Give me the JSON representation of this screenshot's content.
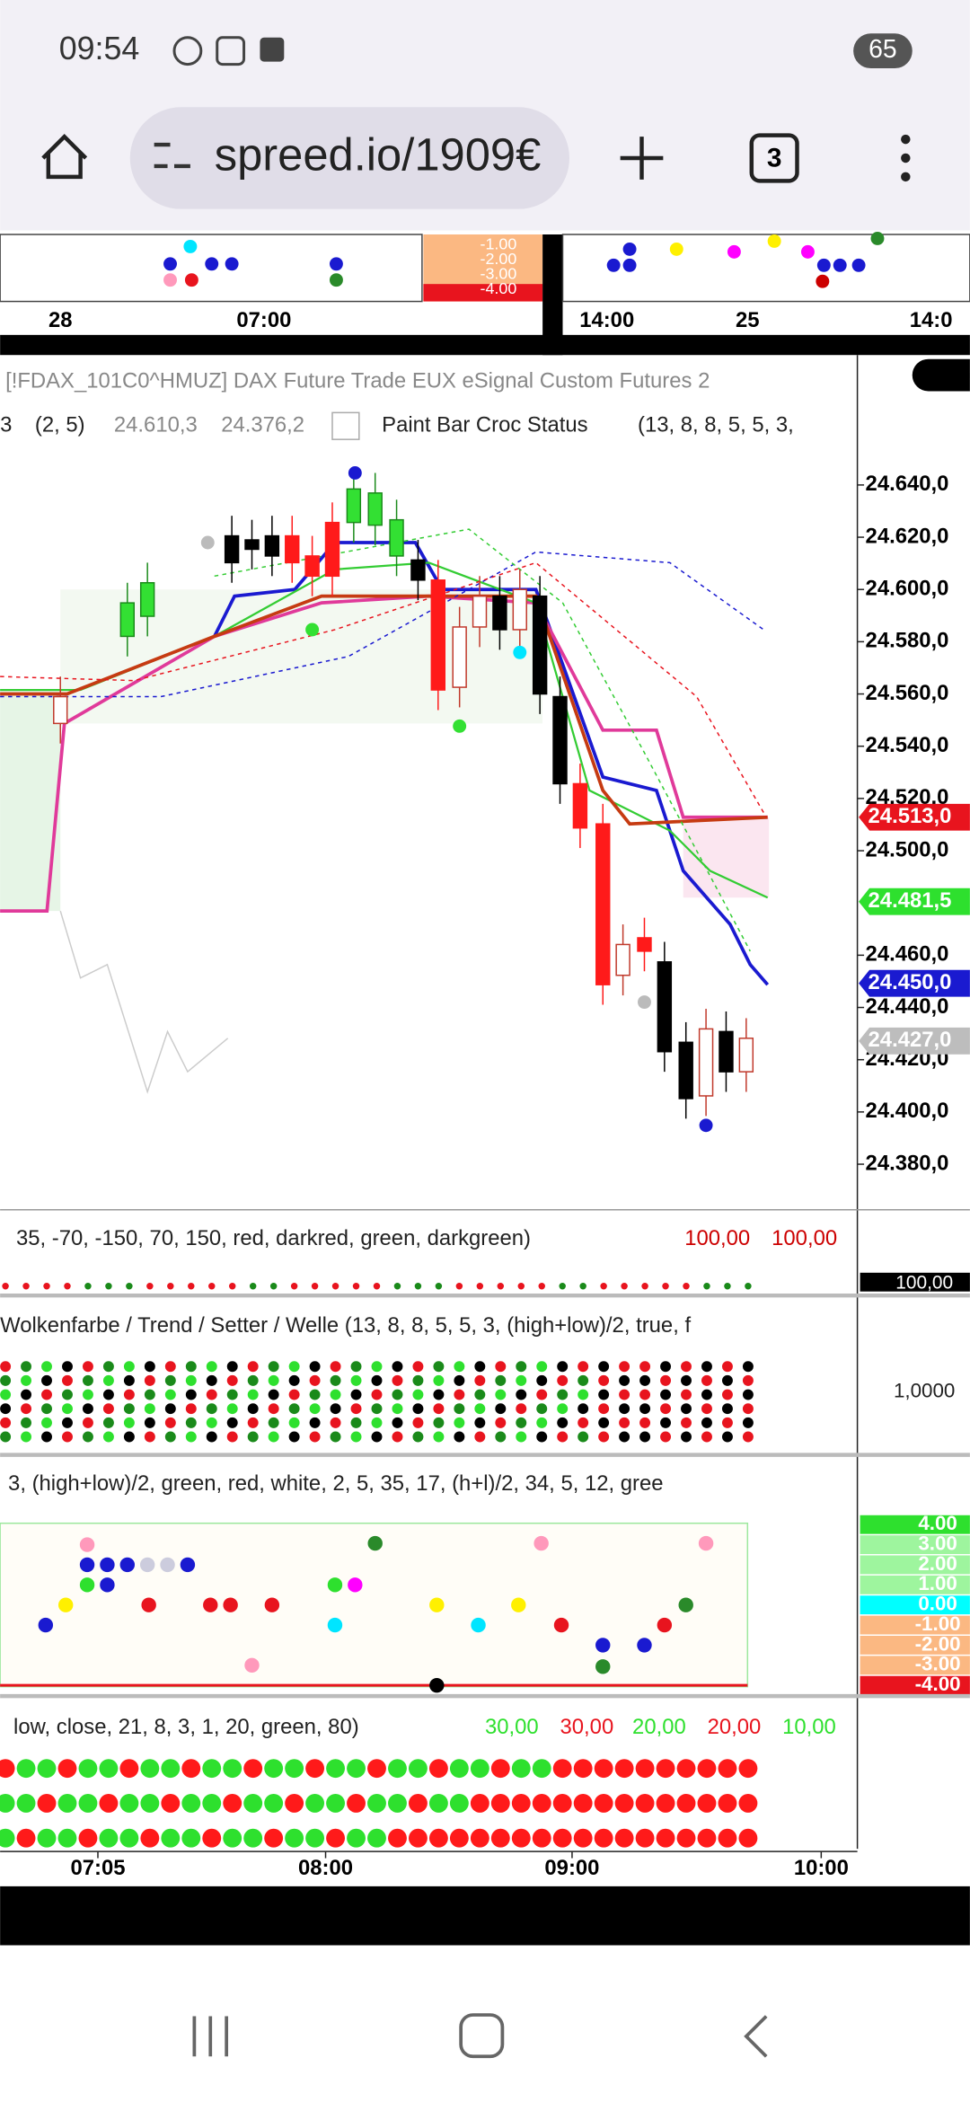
{
  "status_bar": {
    "time": "09:54",
    "battery": "65"
  },
  "browser": {
    "url": "spreed.io/1909€",
    "tabs": "3"
  },
  "top_strip": {
    "time_labels": [
      "28",
      "07:00",
      "14:00",
      "25",
      "14:0"
    ],
    "scale_labels": [
      "-1.00",
      "-2.00",
      "-3.00",
      "-4.00"
    ]
  },
  "main_chart": {
    "header": "[!FDAX_101C0^HMUZ] DAX Future  Trade  EUX  eSignal  Custom Futures  2",
    "indicator_line": [
      "3",
      "(2, 5)",
      "24.610,3",
      "24.376,2",
      "Paint Bar Croc Status",
      "(13, 8, 8, 5, 5, 3,"
    ],
    "price_labels": [
      "24.640,0",
      "24.620,0",
      "24.600,0",
      "24.580,0",
      "24.560,0",
      "24.540,0",
      "24.520,0",
      "24.500,0",
      "24.460,0",
      "24.440,0",
      "24.420,0",
      "24.400,0",
      "24.380,0"
    ],
    "price_tags": [
      {
        "label": "24.513,0",
        "color": "#e8141e"
      },
      {
        "label": "24.481,5",
        "color": "#2ee02e"
      },
      {
        "label": "24.450,0",
        "color": "#1a1ad0"
      },
      {
        "label": "24.427,0",
        "color": "#bdbdbd"
      }
    ]
  },
  "panel_1": {
    "params": "35, -70, -150, 70, 150, red, darkred, green, darkgreen)",
    "values": [
      "100,00",
      "100,00"
    ],
    "axis_label": "100,00"
  },
  "panel_2": {
    "params": "Wolkenfarbe / Trend / Setter / Welle   (13, 8, 8, 5, 5, 3, (high+low)/2, true, f",
    "axis_label": "1,0000"
  },
  "panel_3": {
    "params": "3, (high+low)/2, green, red, white, 2, 5, 35, 17, (h+l)/2, 34, 5, 12, gree",
    "axis_labels": [
      "4.00",
      "3.00",
      "2.00",
      "1.00",
      "0.00",
      "-1.00",
      "-2.00",
      "-3.00",
      "-4.00"
    ]
  },
  "panel_4": {
    "params": "low, close, 21, 8, 3, 1, 20, green, 80)",
    "values": [
      "30,00",
      "30,00",
      "20,00",
      "20,00",
      "10,00"
    ]
  },
  "time_axis": [
    "07:05",
    "08:00",
    "09:00",
    "10:00"
  ]
}
